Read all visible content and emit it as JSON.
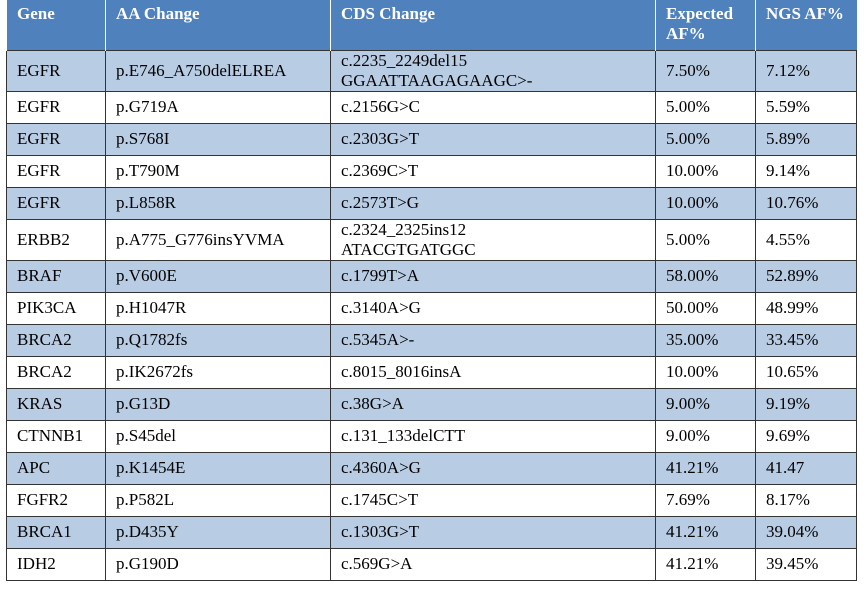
{
  "table": {
    "header": [
      "Gene",
      "AA Change",
      "CDS Change",
      "Expected AF%",
      "NGS AF%"
    ],
    "rows": [
      [
        "EGFR",
        "p.E746_A750delELREA",
        "c.2235_2249del15\nGGAATTAAGAGAAGC>-",
        "7.50%",
        "7.12%"
      ],
      [
        "EGFR",
        "p.G719A",
        "c.2156G>C",
        "5.00%",
        "5.59%"
      ],
      [
        "EGFR",
        "p.S768I",
        "c.2303G>T",
        "5.00%",
        "5.89%"
      ],
      [
        "EGFR",
        "p.T790M",
        "c.2369C>T",
        "10.00%",
        "9.14%"
      ],
      [
        "EGFR",
        "p.L858R",
        "c.2573T>G",
        "10.00%",
        "10.76%"
      ],
      [
        "ERBB2",
        "p.A775_G776insYVMA",
        "c.2324_2325ins12\nATACGTGATGGC",
        "5.00%",
        "4.55%"
      ],
      [
        "BRAF",
        "p.V600E",
        "c.1799T>A",
        "58.00%",
        "52.89%"
      ],
      [
        "PIK3CA",
        "p.H1047R",
        "c.3140A>G",
        "50.00%",
        "48.99%"
      ],
      [
        "BRCA2",
        "p.Q1782fs",
        "c.5345A>-",
        "35.00%",
        "33.45%"
      ],
      [
        "BRCA2",
        "p.IK2672fs",
        "c.8015_8016insA",
        "10.00%",
        "10.65%"
      ],
      [
        "KRAS",
        "p.G13D",
        "c.38G>A",
        "9.00%",
        "9.19%"
      ],
      [
        "CTNNB1",
        "p.S45del",
        "c.131_133delCTT",
        "9.00%",
        "9.69%"
      ],
      [
        "APC",
        "p.K1454E",
        "c.4360A>G",
        "41.21%",
        "41.47"
      ],
      [
        "FGFR2",
        "p.P582L",
        "c.1745C>T",
        "7.69%",
        "8.17%"
      ],
      [
        "BRCA1",
        "p.D435Y",
        "c.1303G>T",
        "41.21%",
        "39.04%"
      ],
      [
        "IDH2",
        "p.G190D",
        "c.569G>A",
        "41.21%",
        "39.45%"
      ]
    ]
  }
}
